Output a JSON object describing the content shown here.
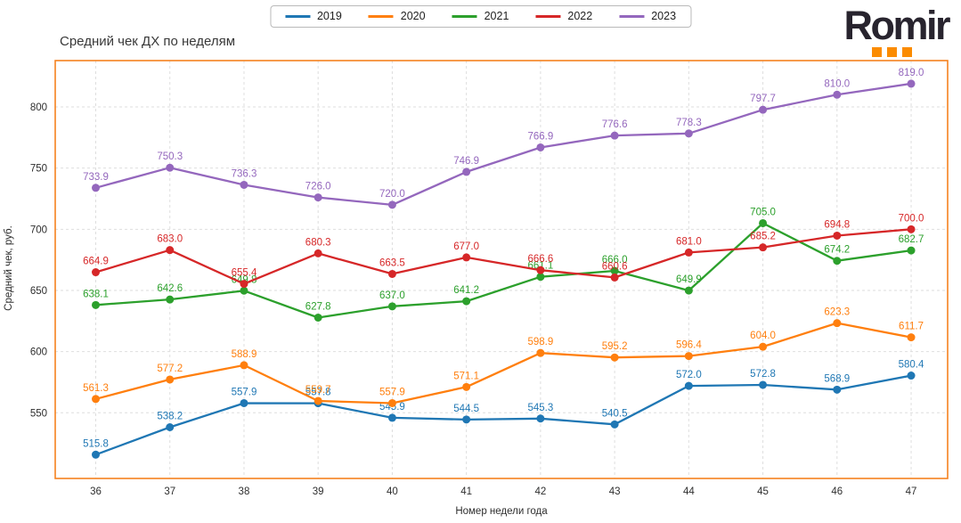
{
  "header": {
    "title": "Средний чек ДХ по неделям",
    "logo_text": "Romir"
  },
  "chart_data": {
    "type": "line",
    "title": "Средний чек ДХ по неделям",
    "xlabel": "Номер недели года",
    "ylabel": "Средний чек, руб.",
    "x": [
      36,
      37,
      38,
      39,
      40,
      41,
      42,
      43,
      44,
      45,
      46,
      47
    ],
    "yticks": [
      550,
      600,
      650,
      700,
      750,
      800
    ],
    "ylim": [
      496,
      838
    ],
    "grid": true,
    "legend_position": "top-center",
    "point_labels": true,
    "series": [
      {
        "name": "2019",
        "color": "#1f77b4",
        "values": [
          515.8,
          538.2,
          557.9,
          557.8,
          545.9,
          544.5,
          545.3,
          540.5,
          572.0,
          572.8,
          568.9,
          580.4
        ]
      },
      {
        "name": "2020",
        "color": "#ff7f0e",
        "values": [
          561.3,
          577.2,
          588.9,
          559.7,
          557.9,
          571.1,
          598.9,
          595.2,
          596.4,
          604.0,
          623.3,
          611.7
        ]
      },
      {
        "name": "2021",
        "color": "#2ca02c",
        "values": [
          638.1,
          642.6,
          649.8,
          627.8,
          637.0,
          641.2,
          661.1,
          666.0,
          649.9,
          705.0,
          674.2,
          682.7
        ]
      },
      {
        "name": "2022",
        "color": "#d62728",
        "values": [
          664.9,
          683.0,
          655.4,
          680.3,
          663.5,
          677.0,
          666.6,
          660.6,
          681.0,
          685.2,
          694.8,
          700.0
        ]
      },
      {
        "name": "2023",
        "color": "#9467bd",
        "values": [
          733.9,
          750.3,
          736.3,
          726.0,
          720.0,
          746.9,
          766.9,
          776.6,
          778.3,
          797.7,
          810.0,
          819.0
        ]
      }
    ]
  },
  "colors": {
    "plot_border": "#f5821f",
    "grid": "#dedede",
    "tick_text": "#2e2e2e",
    "logo_dark": "#28242e",
    "logo_accent": "#fb8b00"
  }
}
